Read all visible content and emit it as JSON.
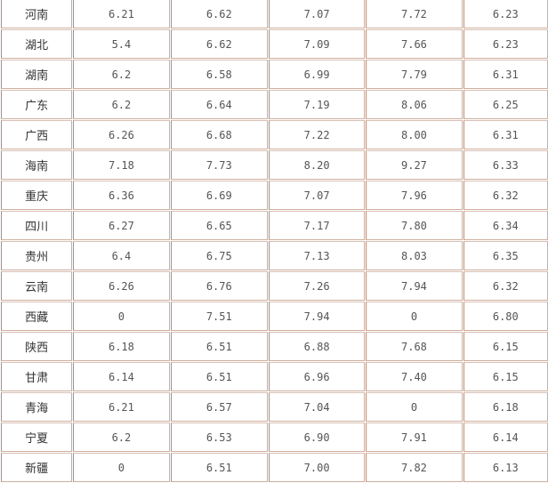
{
  "table": {
    "rows": [
      {
        "region": "河南",
        "values": [
          "6.21",
          "6.62",
          "7.07",
          "7.72",
          "6.23"
        ]
      },
      {
        "region": "湖北",
        "values": [
          "5.4",
          "6.62",
          "7.09",
          "7.66",
          "6.23"
        ]
      },
      {
        "region": "湖南",
        "values": [
          "6.2",
          "6.58",
          "6.99",
          "7.79",
          "6.31"
        ]
      },
      {
        "region": "广东",
        "values": [
          "6.2",
          "6.64",
          "7.19",
          "8.06",
          "6.25"
        ]
      },
      {
        "region": "广西",
        "values": [
          "6.26",
          "6.68",
          "7.22",
          "8.00",
          "6.31"
        ]
      },
      {
        "region": "海南",
        "values": [
          "7.18",
          "7.73",
          "8.20",
          "9.27",
          "6.33"
        ]
      },
      {
        "region": "重庆",
        "values": [
          "6.36",
          "6.69",
          "7.07",
          "7.96",
          "6.32"
        ]
      },
      {
        "region": "四川",
        "values": [
          "6.27",
          "6.65",
          "7.17",
          "7.80",
          "6.34"
        ]
      },
      {
        "region": "贵州",
        "values": [
          "6.4",
          "6.75",
          "7.13",
          "8.03",
          "6.35"
        ]
      },
      {
        "region": "云南",
        "values": [
          "6.26",
          "6.76",
          "7.26",
          "7.94",
          "6.32"
        ]
      },
      {
        "region": "西藏",
        "values": [
          "0",
          "7.51",
          "7.94",
          "0",
          "6.80"
        ]
      },
      {
        "region": "陕西",
        "values": [
          "6.18",
          "6.51",
          "6.88",
          "7.68",
          "6.15"
        ]
      },
      {
        "region": "甘肃",
        "values": [
          "6.14",
          "6.51",
          "6.96",
          "7.40",
          "6.15"
        ]
      },
      {
        "region": "青海",
        "values": [
          "6.21",
          "6.57",
          "7.04",
          "0",
          "6.18"
        ]
      },
      {
        "region": "宁夏",
        "values": [
          "6.2",
          "6.53",
          "6.90",
          "7.91",
          "6.14"
        ]
      },
      {
        "region": "新疆",
        "values": [
          "0",
          "6.51",
          "7.00",
          "7.82",
          "6.13"
        ]
      }
    ]
  }
}
